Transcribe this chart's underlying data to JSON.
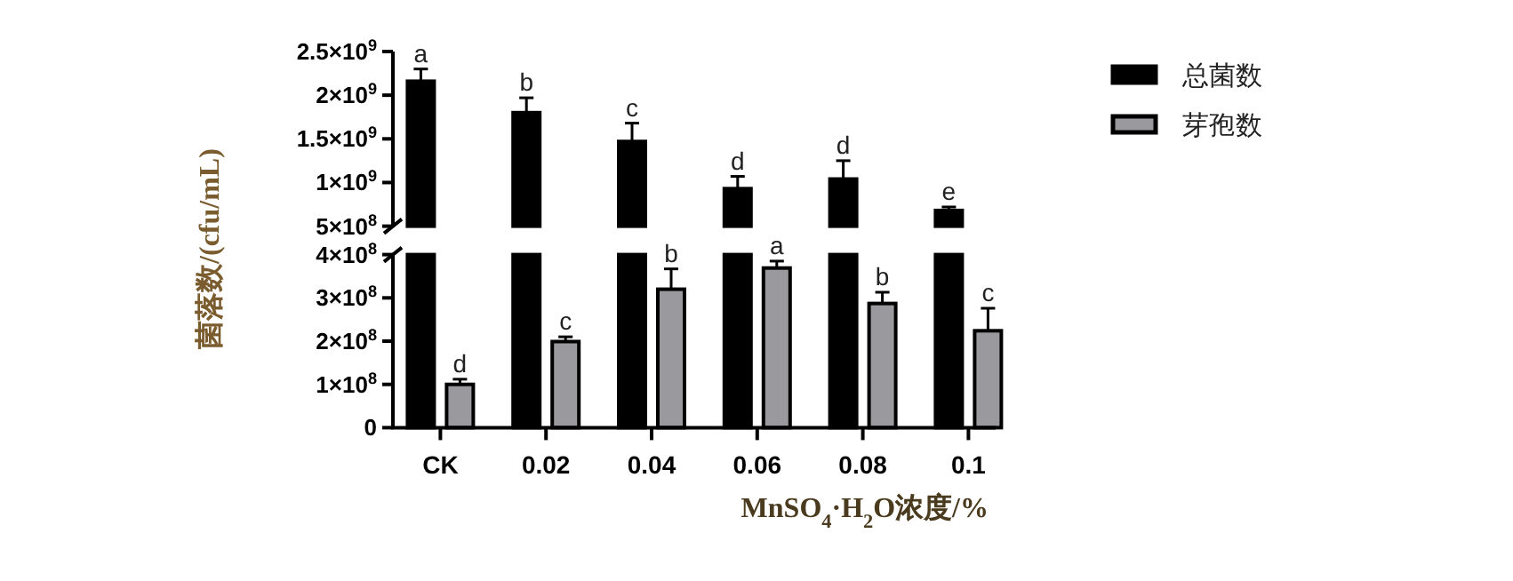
{
  "chart_data": [
    {
      "type": "bar",
      "categories": [
        null,
        null,
        null,
        null,
        null,
        null
      ],
      "ylim": [
        500000000,
        2500000000
      ],
      "yticks": [
        {
          "value": 500000000,
          "label": "5×10$^{8}$"
        },
        {
          "value": 1000000000,
          "label": "1×10$^{9}$"
        },
        {
          "value": 1500000000,
          "label": "1.5×10$^{9}$"
        },
        {
          "value": 2000000000,
          "label": "2×10$^{9}$"
        },
        {
          "value": 2500000000,
          "label": "2.5×10$^{9}$"
        }
      ],
      "tick_labels": "y",
      "legend": "right",
      "series": [
        {
          "name": "总菌数",
          "color": "#000000",
          "values": [
            2160000000,
            1800000000,
            1470000000,
            930000000,
            1040000000,
            680000000
          ],
          "errors": [
            140000000,
            170000000,
            210000000,
            140000000,
            210000000,
            40000000
          ],
          "value_labels": [
            "a",
            "b",
            "c",
            "d",
            "d",
            "e"
          ]
        }
      ]
    },
    {
      "type": "bar",
      "categories": [
        "CK",
        "0.02",
        "0.04",
        "0.06",
        "0.08",
        "0.1"
      ],
      "ylim": [
        0,
        400000000
      ],
      "yticks": [
        0,
        {
          "value": 100000000,
          "label": "1×10$^{8}$"
        },
        {
          "value": 200000000,
          "label": "2×10$^{8}$"
        },
        {
          "value": 300000000,
          "label": "3×10$^{8}$"
        },
        {
          "value": 400000000,
          "label": "4×10$^{8}$"
        }
      ],
      "legend": "right",
      "xlabel": "MnSO$_{4}$·H$_{2}$O浓度/%",
      "ylabel": "菌落数/(cfu/mL)",
      "series": [
        {
          "name": "芽孢数",
          "color": "#9a9a9e",
          "values": [
            100000000,
            199000000,
            320000000,
            369000000,
            287000000,
            224000000
          ],
          "errors": [
            12000000,
            11000000,
            47000000,
            16000000,
            26000000,
            52000000
          ],
          "value_labels": [
            "d",
            "c",
            "b",
            "a",
            "b",
            "c"
          ]
        }
      ]
    }
  ]
}
